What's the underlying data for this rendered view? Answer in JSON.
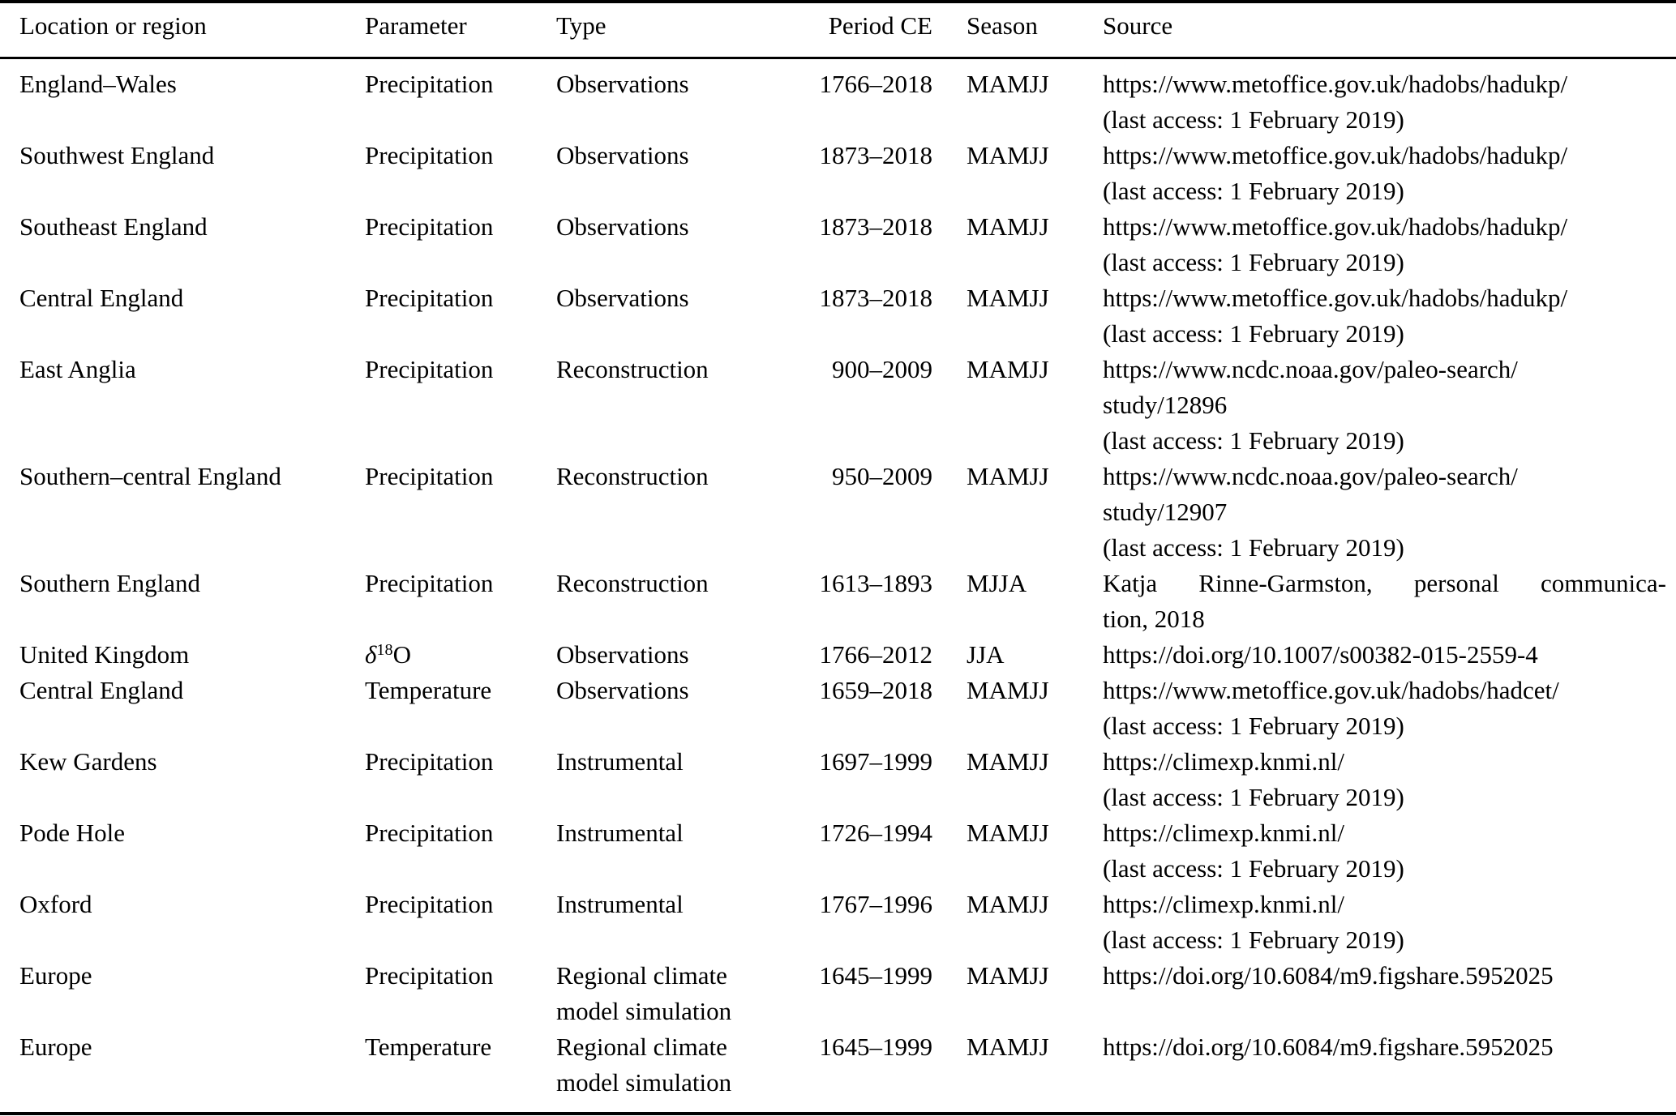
{
  "table": {
    "columns": [
      {
        "key": "location",
        "label": "Location or region"
      },
      {
        "key": "parameter",
        "label": "Parameter"
      },
      {
        "key": "type",
        "label": "Type"
      },
      {
        "key": "period",
        "label": "Period CE"
      },
      {
        "key": "season",
        "label": "Season"
      },
      {
        "key": "source",
        "label": "Source"
      }
    ],
    "rows": [
      {
        "location": "England–Wales",
        "parameter": "Precipitation",
        "type": [
          "Observations"
        ],
        "period": "1766–2018",
        "season": "MAMJJ",
        "source": [
          "https://www.metoffice.gov.uk/hadobs/hadukp/",
          "(last access: 1 February 2019)"
        ]
      },
      {
        "location": "Southwest England",
        "parameter": "Precipitation",
        "type": [
          "Observations"
        ],
        "period": "1873–2018",
        "season": "MAMJJ",
        "source": [
          "https://www.metoffice.gov.uk/hadobs/hadukp/",
          "(last access: 1 February 2019)"
        ]
      },
      {
        "location": "Southeast England",
        "parameter": "Precipitation",
        "type": [
          "Observations"
        ],
        "period": "1873–2018",
        "season": "MAMJJ",
        "source": [
          "https://www.metoffice.gov.uk/hadobs/hadukp/",
          "(last access: 1 February 2019)"
        ]
      },
      {
        "location": "Central England",
        "parameter": "Precipitation",
        "type": [
          "Observations"
        ],
        "period": "1873–2018",
        "season": "MAMJJ",
        "source": [
          "https://www.metoffice.gov.uk/hadobs/hadukp/",
          "(last access: 1 February 2019)"
        ]
      },
      {
        "location": "East Anglia",
        "parameter": "Precipitation",
        "type": [
          "Reconstruction"
        ],
        "period": "900–2009",
        "season": "MAMJJ",
        "source": [
          "https://www.ncdc.noaa.gov/paleo-search/",
          "study/12896",
          "(last access: 1 February 2019)"
        ]
      },
      {
        "location": "Southern–central England",
        "parameter": "Precipitation",
        "type": [
          "Reconstruction"
        ],
        "period": "950–2009",
        "season": "MAMJJ",
        "source": [
          "https://www.ncdc.noaa.gov/paleo-search/",
          "study/12907",
          "(last access: 1 February 2019)"
        ]
      },
      {
        "location": "Southern England",
        "parameter": "Precipitation",
        "type": [
          "Reconstruction"
        ],
        "period": "1613–1893",
        "season": "MJJA",
        "source": [
          "Katja Rinne-Garmston, personal communica-",
          "tion, 2018"
        ],
        "source_justify_first": true
      },
      {
        "location": "United Kingdom",
        "parameter": {
          "parts": [
            {
              "text": "δ",
              "style": "italic"
            },
            {
              "text": "18",
              "style": "sup"
            },
            {
              "text": "O",
              "style": "normal"
            }
          ]
        },
        "type": [
          "Observations"
        ],
        "period": "1766–2012",
        "season": "JJA",
        "source": [
          "https://doi.org/10.1007/s00382-015-2559-4"
        ]
      },
      {
        "location": "Central England",
        "parameter": "Temperature",
        "type": [
          "Observations"
        ],
        "period": "1659–2018",
        "season": "MAMJJ",
        "source": [
          "https://www.metoffice.gov.uk/hadobs/hadcet/",
          "(last access: 1 February 2019)"
        ]
      },
      {
        "location": "Kew Gardens",
        "parameter": "Precipitation",
        "type": [
          "Instrumental"
        ],
        "period": "1697–1999",
        "season": "MAMJJ",
        "source": [
          "https://climexp.knmi.nl/",
          "(last access: 1 February 2019)"
        ]
      },
      {
        "location": "Pode Hole",
        "parameter": "Precipitation",
        "type": [
          "Instrumental"
        ],
        "period": "1726–1994",
        "season": "MAMJJ",
        "source": [
          "https://climexp.knmi.nl/",
          "(last access: 1 February 2019)"
        ]
      },
      {
        "location": "Oxford",
        "parameter": "Precipitation",
        "type": [
          "Instrumental"
        ],
        "period": "1767–1996",
        "season": "MAMJJ",
        "source": [
          "https://climexp.knmi.nl/",
          "(last access: 1 February 2019)"
        ]
      },
      {
        "location": "Europe",
        "parameter": "Precipitation",
        "type": [
          "Regional climate",
          "model simulation"
        ],
        "period": "1645–1999",
        "season": "MAMJJ",
        "source": [
          "https://doi.org/10.6084/m9.figshare.5952025"
        ]
      },
      {
        "location": "Europe",
        "parameter": "Temperature",
        "type": [
          "Regional climate",
          "model simulation"
        ],
        "period": "1645–1999",
        "season": "MAMJJ",
        "source": [
          "https://doi.org/10.6084/m9.figshare.5952025"
        ]
      }
    ]
  },
  "colors": {
    "text": "#000000",
    "background": "#ffffff",
    "rule": "#000000"
  }
}
